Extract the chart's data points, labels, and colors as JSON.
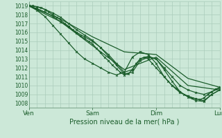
{
  "title": "",
  "xlabel": "Pression niveau de la mer( hPa )",
  "bg_color": "#cce8d8",
  "grid_color": "#aaccbb",
  "line_color": "#1a5c2a",
  "ylim": [
    1007.5,
    1019.5
  ],
  "yticks": [
    1008,
    1009,
    1010,
    1011,
    1012,
    1013,
    1014,
    1015,
    1016,
    1017,
    1018,
    1019
  ],
  "xtick_labels": [
    "Ven",
    "Sam",
    "Dim",
    "Lun"
  ],
  "xtick_positions": [
    0,
    48,
    96,
    144
  ],
  "lines": [
    {
      "x": [
        0,
        24,
        48,
        72,
        96,
        120,
        144
      ],
      "y": [
        1019.0,
        1017.5,
        1015.5,
        1013.8,
        1013.5,
        1010.8,
        1009.8
      ],
      "marker": null,
      "lw": 0.9
    },
    {
      "x": [
        0,
        24,
        48,
        72,
        96,
        120,
        144
      ],
      "y": [
        1019.0,
        1017.2,
        1014.5,
        1011.8,
        1013.2,
        1010.0,
        1009.5
      ],
      "marker": null,
      "lw": 0.9
    },
    {
      "x": [
        0,
        6,
        12,
        18,
        24,
        30,
        36,
        42,
        48,
        54,
        60,
        66,
        72,
        78,
        84,
        90,
        96,
        102,
        108,
        114,
        120,
        126,
        132,
        138,
        144
      ],
      "y": [
        1019.0,
        1018.7,
        1018.3,
        1017.8,
        1017.2,
        1016.6,
        1016.0,
        1015.5,
        1015.0,
        1014.3,
        1013.5,
        1012.5,
        1011.5,
        1011.8,
        1013.0,
        1013.3,
        1013.0,
        1012.0,
        1011.0,
        1010.0,
        1009.5,
        1009.2,
        1009.0,
        1009.3,
        1009.7
      ],
      "marker": "x",
      "lw": 0.9
    },
    {
      "x": [
        0,
        6,
        12,
        18,
        24,
        30,
        36,
        42,
        48,
        54,
        60,
        66,
        72,
        78,
        84,
        90,
        96,
        102,
        108,
        114,
        120,
        126,
        132,
        138,
        144
      ],
      "y": [
        1019.0,
        1018.5,
        1017.8,
        1016.8,
        1015.8,
        1014.8,
        1013.8,
        1013.0,
        1012.5,
        1012.0,
        1011.5,
        1011.2,
        1011.5,
        1013.2,
        1013.8,
        1013.5,
        1012.5,
        1011.0,
        1010.0,
        1009.2,
        1008.8,
        1008.5,
        1008.3,
        1009.0,
        1009.5
      ],
      "marker": "x",
      "lw": 0.9
    },
    {
      "x": [
        0,
        6,
        12,
        18,
        24,
        30,
        36,
        42,
        48,
        54,
        60,
        66,
        72,
        78,
        84,
        90,
        96,
        102,
        108,
        114,
        120,
        126,
        132,
        138,
        144
      ],
      "y": [
        1019.0,
        1018.9,
        1018.6,
        1018.2,
        1017.7,
        1017.0,
        1016.3,
        1015.7,
        1015.1,
        1014.3,
        1013.3,
        1012.3,
        1011.3,
        1011.5,
        1012.8,
        1013.2,
        1013.0,
        1011.8,
        1010.5,
        1009.3,
        1008.7,
        1008.3,
        1008.2,
        1009.0,
        1009.5
      ],
      "marker": "x",
      "lw": 0.9
    },
    {
      "x": [
        0,
        3,
        6,
        9,
        12,
        15,
        18,
        21,
        24,
        27,
        30,
        33,
        36,
        39,
        42,
        45,
        48,
        51,
        54,
        57,
        60,
        63,
        66,
        69,
        72,
        75,
        78,
        81,
        84,
        87,
        90,
        93,
        96,
        99,
        102,
        105,
        108,
        111,
        114,
        117,
        120,
        123,
        126,
        129,
        132,
        135,
        138,
        141,
        144
      ],
      "y": [
        1019.0,
        1019.0,
        1018.9,
        1018.8,
        1018.6,
        1018.3,
        1018.0,
        1017.7,
        1017.4,
        1017.0,
        1016.7,
        1016.3,
        1015.9,
        1015.6,
        1015.3,
        1015.0,
        1014.7,
        1014.2,
        1013.7,
        1013.2,
        1012.8,
        1012.3,
        1011.9,
        1011.5,
        1011.2,
        1011.3,
        1011.8,
        1012.5,
        1013.0,
        1013.2,
        1013.0,
        1012.5,
        1012.0,
        1011.5,
        1011.0,
        1010.5,
        1010.0,
        1009.7,
        1009.3,
        1009.0,
        1008.8,
        1008.6,
        1008.5,
        1008.4,
        1008.6,
        1009.0,
        1009.3,
        1009.6,
        1009.8
      ],
      "marker": "x",
      "lw": 0.9
    }
  ]
}
